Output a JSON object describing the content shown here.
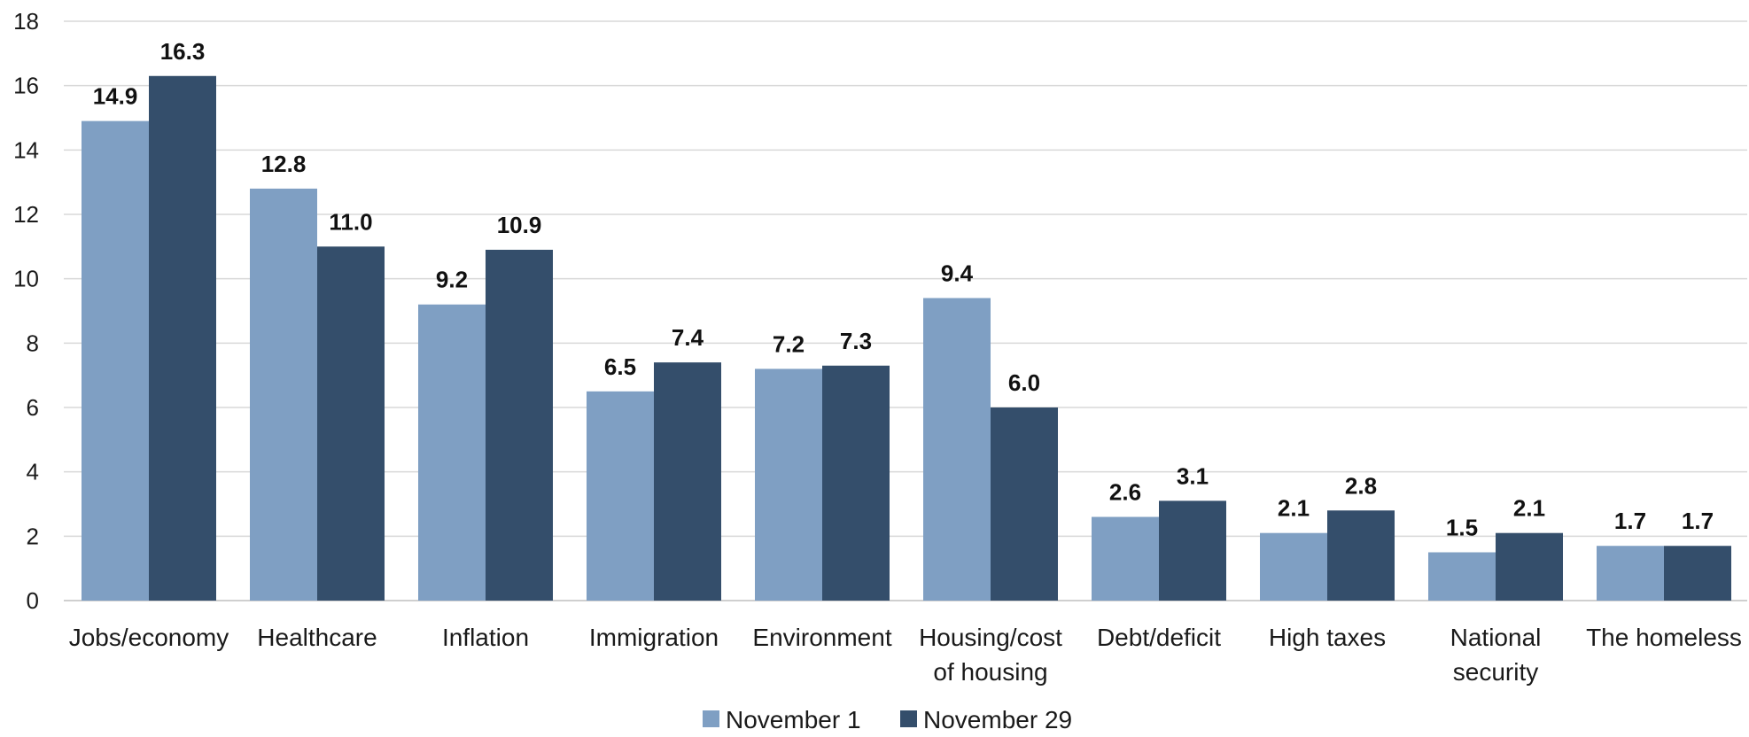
{
  "chart_data": {
    "type": "bar",
    "title": "",
    "xlabel": "",
    "ylabel": "",
    "ylim": [
      0,
      18
    ],
    "yticks": [
      "0",
      "2",
      "4",
      "6",
      "8",
      "10",
      "12",
      "14",
      "16",
      "18"
    ],
    "grid": true,
    "legend_position": "bottom",
    "categories": [
      [
        "Jobs/economy"
      ],
      [
        "Healthcare"
      ],
      [
        "Inflation"
      ],
      [
        "Immigration"
      ],
      [
        "Environment"
      ],
      [
        "Housing/cost",
        "of housing"
      ],
      [
        "Debt/deficit"
      ],
      [
        "High taxes"
      ],
      [
        "National",
        "security"
      ],
      [
        "The homeless"
      ]
    ],
    "series": [
      {
        "name": "November 1",
        "color": "#7f9fc3",
        "values": [
          14.9,
          12.8,
          9.2,
          6.5,
          7.2,
          9.4,
          2.6,
          2.1,
          1.5,
          1.7
        ],
        "labels": [
          "14.9",
          "12.8",
          "9.2",
          "6.5",
          "7.2",
          "9.4",
          "2.6",
          "2.1",
          "1.5",
          "1.7"
        ]
      },
      {
        "name": "November 29",
        "color": "#344e6b",
        "values": [
          16.3,
          11.0,
          10.9,
          7.4,
          7.3,
          6.0,
          3.1,
          2.8,
          2.1,
          1.7
        ],
        "labels": [
          "16.3",
          "11.0",
          "10.9",
          "7.4",
          "7.3",
          "6.0",
          "3.1",
          "2.8",
          "2.1",
          "1.7"
        ]
      }
    ]
  }
}
